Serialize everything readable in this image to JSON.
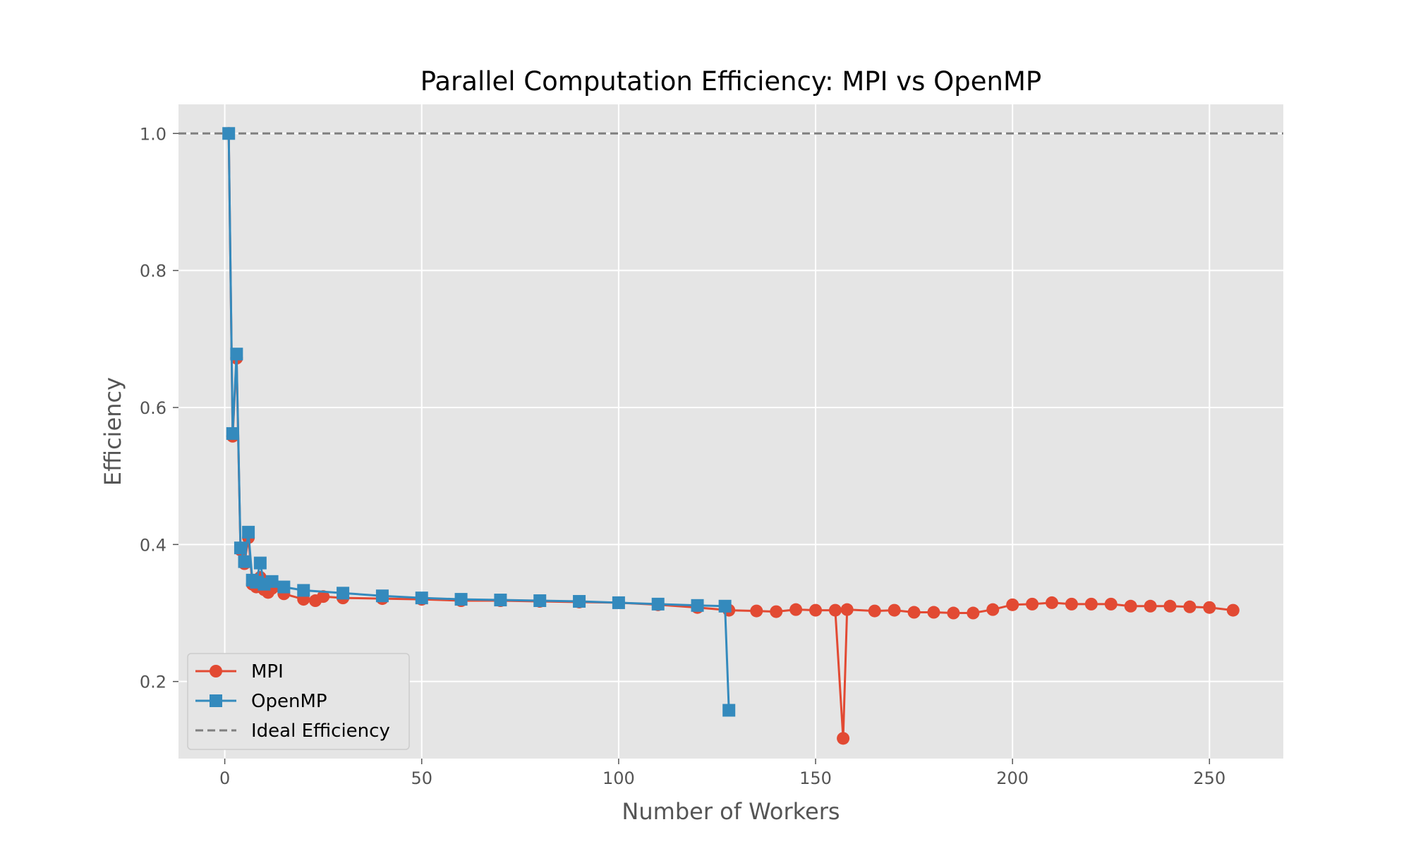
{
  "chart_data": {
    "type": "line",
    "title": "Parallel Computation Efficiency: MPI vs OpenMP",
    "xlabel": "Number of Workers",
    "ylabel": "Efficiency",
    "xlim": [
      -11.75,
      268.75
    ],
    "ylim": [
      0.0875,
      1.0425
    ],
    "xticks": [
      0,
      50,
      100,
      150,
      200,
      250
    ],
    "yticks": [
      0.2,
      0.4,
      0.6,
      0.8,
      1.0
    ],
    "xtick_labels": [
      "0",
      "50",
      "100",
      "150",
      "200",
      "250"
    ],
    "ytick_labels": [
      "0.2",
      "0.4",
      "0.6",
      "0.8",
      "1.0"
    ],
    "grid": true,
    "legend_position": "lower-left",
    "reference_line": {
      "name": "Ideal Efficiency",
      "y": 1.0,
      "color": "#808080",
      "style": "dashed"
    },
    "series": [
      {
        "name": "MPI",
        "color": "#E24A33",
        "marker": "circle",
        "points": [
          [
            1,
            1.0
          ],
          [
            2,
            0.558
          ],
          [
            3,
            0.672
          ],
          [
            4,
            0.392
          ],
          [
            5,
            0.372
          ],
          [
            6,
            0.41
          ],
          [
            7,
            0.342
          ],
          [
            8,
            0.338
          ],
          [
            9,
            0.352
          ],
          [
            10,
            0.334
          ],
          [
            11,
            0.33
          ],
          [
            12,
            0.336
          ],
          [
            15,
            0.328
          ],
          [
            20,
            0.32
          ],
          [
            23,
            0.318
          ],
          [
            25,
            0.324
          ],
          [
            30,
            0.322
          ],
          [
            40,
            0.321
          ],
          [
            50,
            0.32
          ],
          [
            60,
            0.318
          ],
          [
            70,
            0.318
          ],
          [
            80,
            0.317
          ],
          [
            90,
            0.316
          ],
          [
            100,
            0.315
          ],
          [
            110,
            0.312
          ],
          [
            120,
            0.308
          ],
          [
            128,
            0.304
          ],
          [
            135,
            0.303
          ],
          [
            140,
            0.302
          ],
          [
            145,
            0.305
          ],
          [
            150,
            0.304
          ],
          [
            155,
            0.304
          ],
          [
            157,
            0.117
          ],
          [
            158,
            0.305
          ],
          [
            165,
            0.303
          ],
          [
            170,
            0.304
          ],
          [
            175,
            0.301
          ],
          [
            180,
            0.301
          ],
          [
            185,
            0.3
          ],
          [
            190,
            0.3
          ],
          [
            195,
            0.305
          ],
          [
            200,
            0.312
          ],
          [
            205,
            0.313
          ],
          [
            210,
            0.315
          ],
          [
            215,
            0.313
          ],
          [
            220,
            0.313
          ],
          [
            225,
            0.313
          ],
          [
            230,
            0.31
          ],
          [
            235,
            0.31
          ],
          [
            240,
            0.31
          ],
          [
            245,
            0.309
          ],
          [
            250,
            0.308
          ],
          [
            256,
            0.304
          ]
        ]
      },
      {
        "name": "OpenMP",
        "color": "#348ABD",
        "marker": "square",
        "points": [
          [
            1,
            1.0
          ],
          [
            2,
            0.562
          ],
          [
            3,
            0.678
          ],
          [
            4,
            0.395
          ],
          [
            5,
            0.375
          ],
          [
            6,
            0.418
          ],
          [
            7,
            0.348
          ],
          [
            8,
            0.345
          ],
          [
            9,
            0.373
          ],
          [
            10,
            0.342
          ],
          [
            12,
            0.346
          ],
          [
            15,
            0.338
          ],
          [
            20,
            0.333
          ],
          [
            30,
            0.329
          ],
          [
            40,
            0.325
          ],
          [
            50,
            0.322
          ],
          [
            60,
            0.32
          ],
          [
            70,
            0.319
          ],
          [
            80,
            0.318
          ],
          [
            90,
            0.317
          ],
          [
            100,
            0.315
          ],
          [
            110,
            0.313
          ],
          [
            120,
            0.311
          ],
          [
            127,
            0.31
          ],
          [
            128,
            0.158
          ]
        ]
      }
    ]
  }
}
